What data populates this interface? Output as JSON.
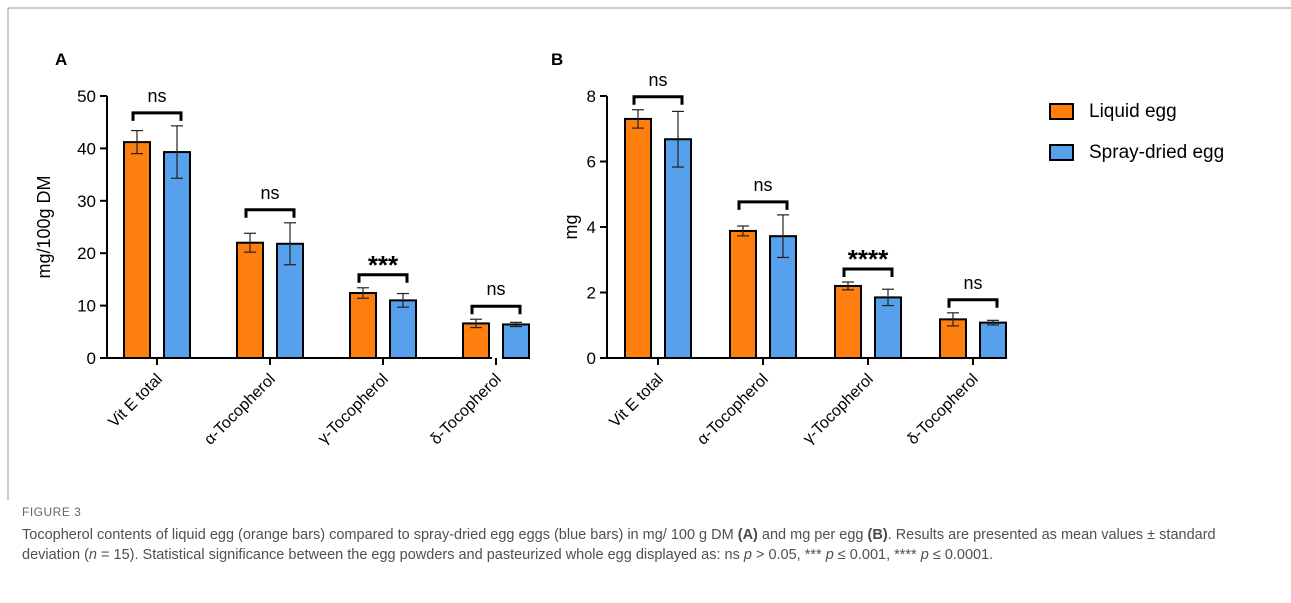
{
  "figure": {
    "label": "FIGURE 3",
    "caption_segments": [
      {
        "text": "Tocopherol contents of liquid egg (orange bars) compared to spray-dried egg eggs (blue bars) in mg/ 100 g DM "
      },
      {
        "text": "(A)",
        "bold": true
      },
      {
        "text": " and mg per egg "
      },
      {
        "text": "(B)",
        "bold": true
      },
      {
        "text": ". Results are presented as mean values ± standard deviation ("
      },
      {
        "text": "n",
        "italic": true
      },
      {
        "text": " = 15). Statistical significance between the egg powders and pasteurized whole egg displayed as: ns "
      },
      {
        "text": "p",
        "italic": true
      },
      {
        "text": " > 0.05, *** "
      },
      {
        "text": "p",
        "italic": true
      },
      {
        "text": " ≤ 0.001, **** "
      },
      {
        "text": "p",
        "italic": true
      },
      {
        "text": " ≤ 0.0001."
      }
    ]
  },
  "colors": {
    "liquid": "#ff7f0e",
    "spray": "#56a0ec",
    "axis": "#000000"
  },
  "legend": [
    {
      "name": "Liquid egg",
      "color": "#ff7f0e"
    },
    {
      "name": "Spray-dried egg",
      "color": "#56a0ec"
    }
  ],
  "chart_data": [
    {
      "panel": "A",
      "type": "bar",
      "ylabel": "mg/100g DM",
      "ylim": [
        0,
        50
      ],
      "yticks": [
        0,
        10,
        20,
        30,
        40,
        50
      ],
      "categories": [
        "Vit E total",
        "α-Tocopherol",
        "γ-Tocopherol",
        "δ-Tocopherol"
      ],
      "series": [
        {
          "name": "Liquid egg",
          "values": [
            41.2,
            22.0,
            12.4,
            6.6
          ],
          "errors": [
            2.2,
            1.8,
            1.0,
            0.8
          ]
        },
        {
          "name": "Spray-dried egg",
          "values": [
            39.3,
            21.8,
            11.0,
            6.4
          ],
          "errors": [
            5.0,
            4.0,
            1.3,
            0.4
          ]
        }
      ],
      "significance": [
        "ns",
        "ns",
        "***",
        "ns"
      ]
    },
    {
      "panel": "B",
      "type": "bar",
      "ylabel": "mg",
      "ylim": [
        0,
        8
      ],
      "yticks": [
        0,
        2,
        4,
        6,
        8
      ],
      "categories": [
        "Vit E total",
        "α-Tocopherol",
        "γ-Tocopherol",
        "δ-Tocopherol"
      ],
      "series": [
        {
          "name": "Liquid egg",
          "values": [
            7.3,
            3.88,
            2.2,
            1.18
          ],
          "errors": [
            0.28,
            0.15,
            0.12,
            0.2
          ]
        },
        {
          "name": "Spray-dried egg",
          "values": [
            6.68,
            3.72,
            1.85,
            1.08
          ],
          "errors": [
            0.85,
            0.65,
            0.25,
            0.07
          ]
        }
      ],
      "significance": [
        "ns",
        "ns",
        "****",
        "ns"
      ]
    }
  ]
}
